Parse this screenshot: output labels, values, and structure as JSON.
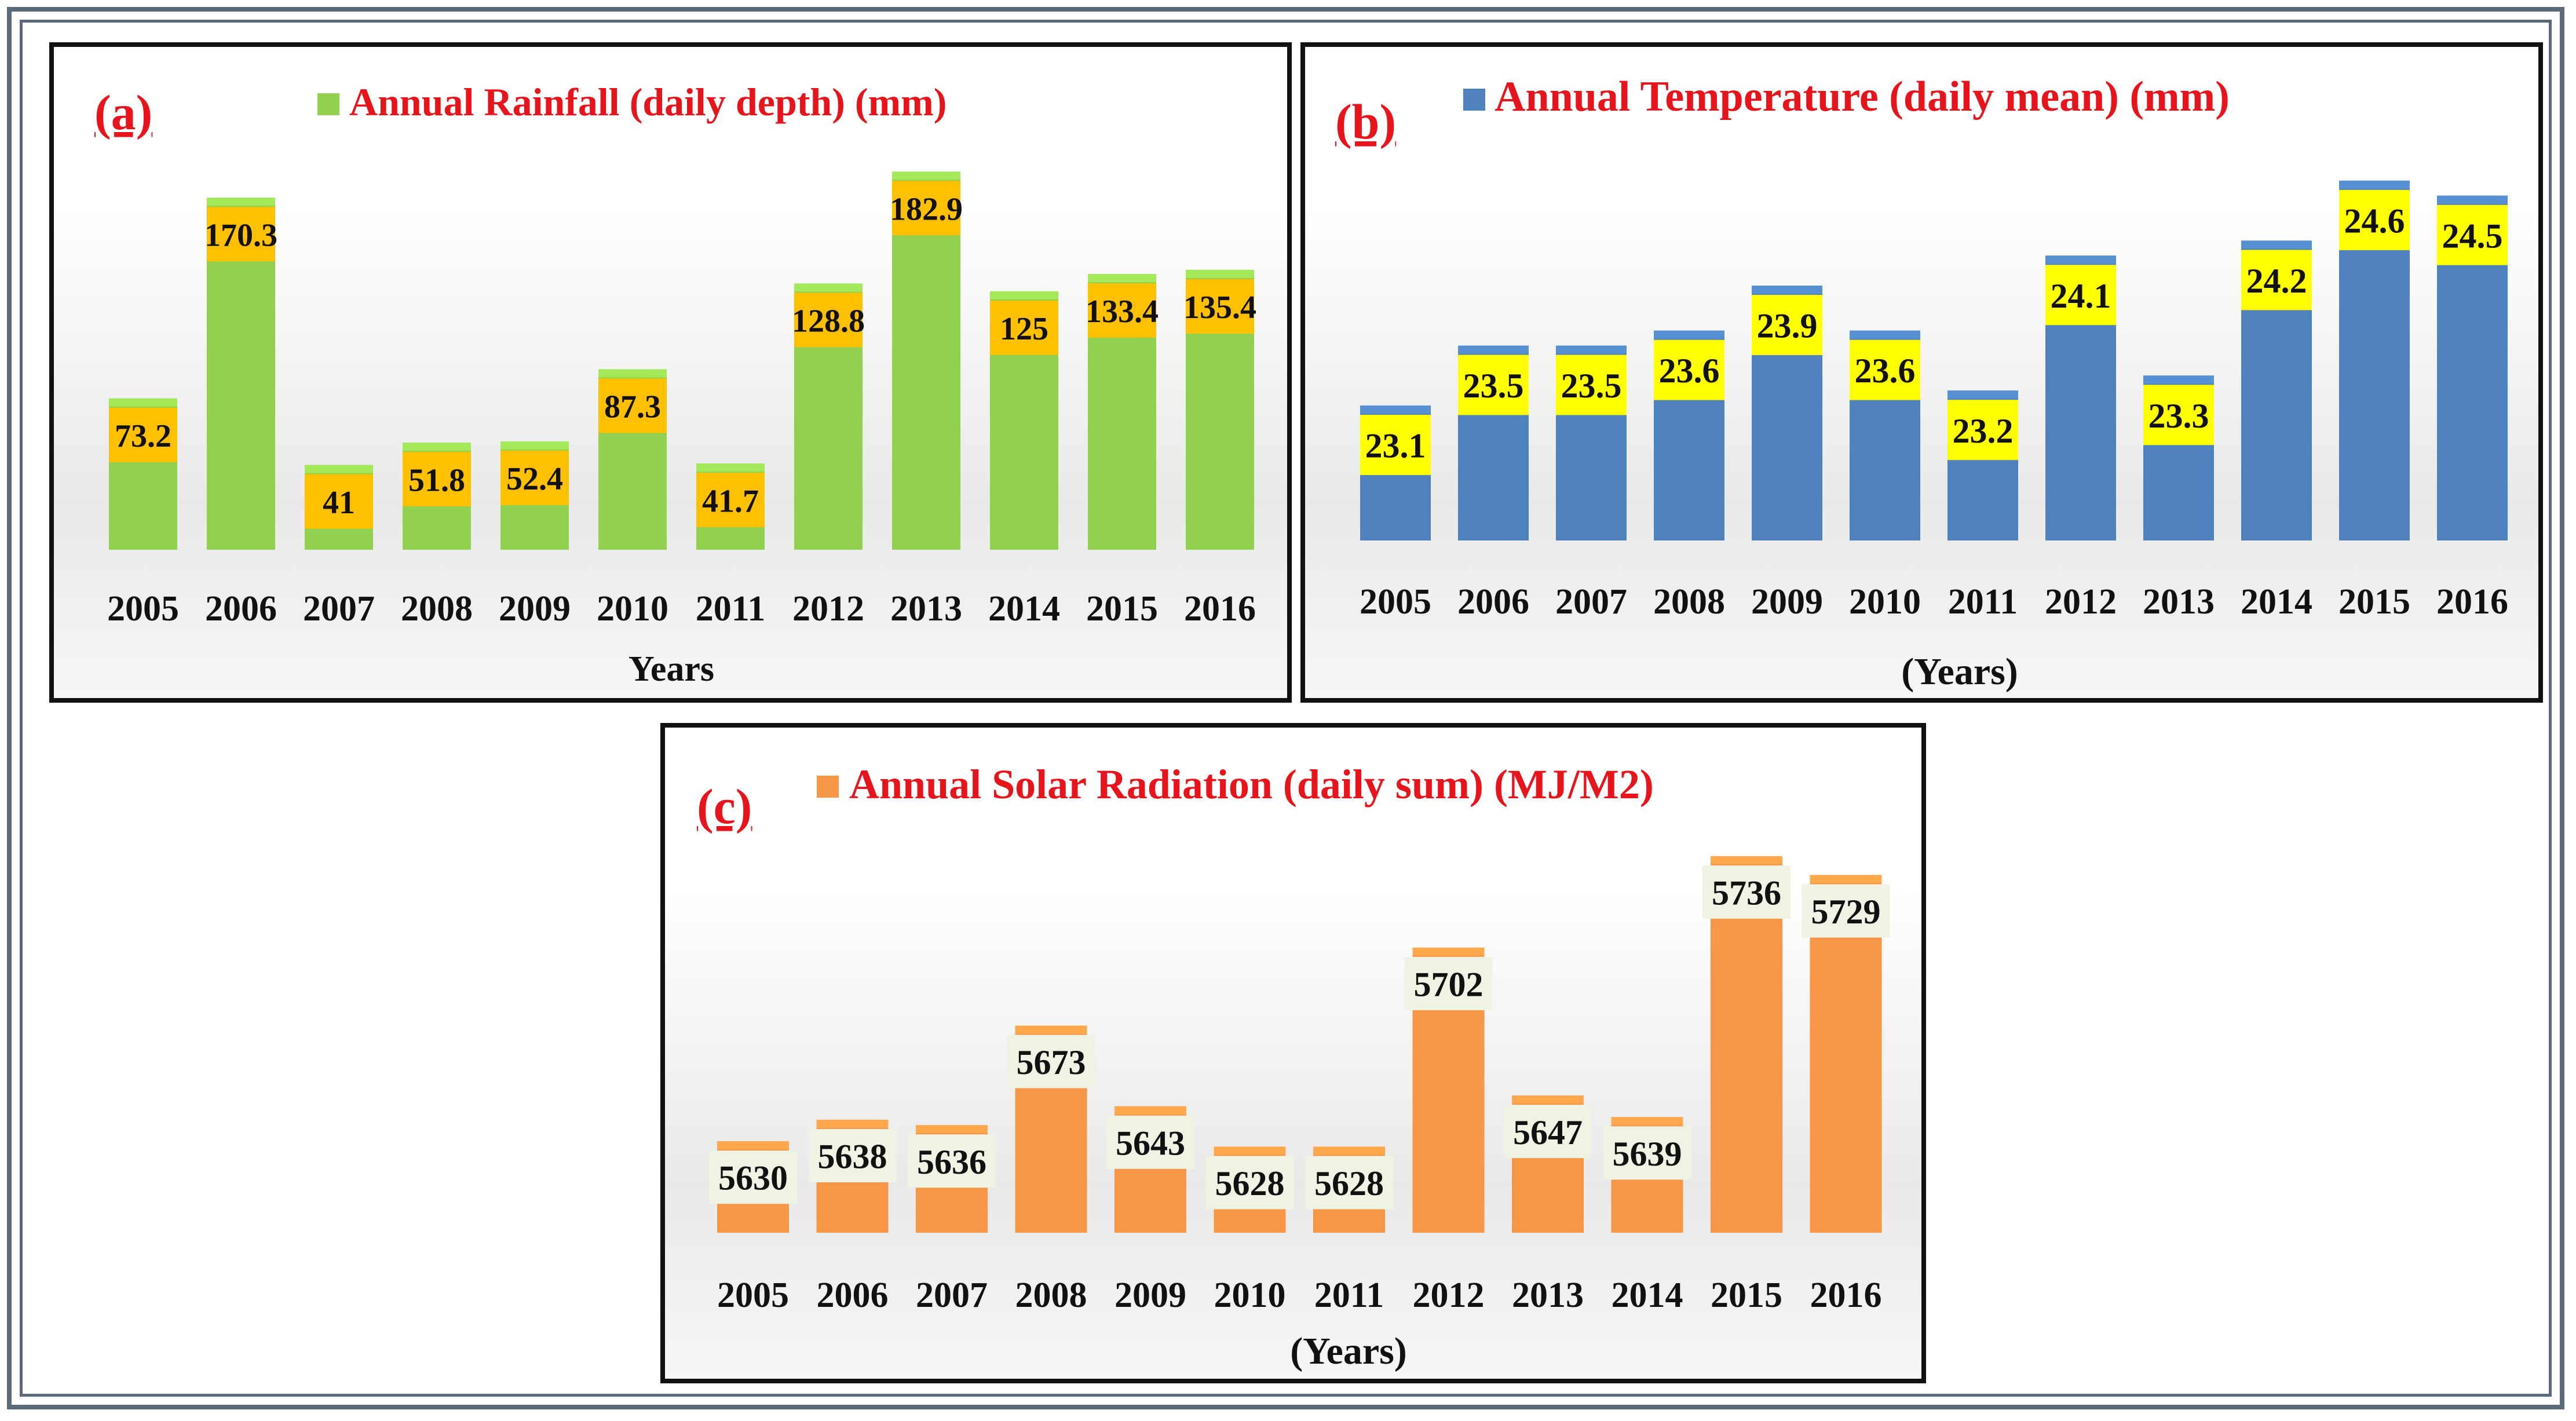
{
  "colors": {
    "title_red": "#e8141b",
    "label_text": "#111111",
    "rainfall_bar": "#92d050",
    "rainfall_label_bg": "#ffc000",
    "temperature_bar": "#4f81bd",
    "temperature_label_bg": "#ffff00",
    "solar_bar": "#f79646",
    "solar_label_bg": "#eef3e4"
  },
  "chart_data": [
    {
      "panel_label": "(a)",
      "type": "bar",
      "title": "Annual Rainfall (daily depth) (mm)",
      "xlabel": "Years",
      "ylabel": "",
      "legend_position": "top-center",
      "grid": false,
      "ylim": [
        0,
        190
      ],
      "categories": [
        "2005",
        "2006",
        "2007",
        "2008",
        "2009",
        "2010",
        "2011",
        "2012",
        "2013",
        "2014",
        "2015",
        "2016"
      ],
      "series": [
        {
          "name": "Annual Rainfall (daily depth) (mm)",
          "values": [
            73.2,
            170.3,
            41,
            51.8,
            52.4,
            87.3,
            41.7,
            128.8,
            182.9,
            125,
            133.4,
            135.4
          ]
        }
      ],
      "data_labels": [
        "73.2",
        "170.3",
        "41",
        "51.8",
        "52.4",
        "87.3",
        "41.7",
        "128.8",
        "182.9",
        "125",
        "133.4",
        "135.4"
      ]
    },
    {
      "panel_label": "(b)",
      "type": "bar",
      "title": "Annual Temperature (daily mean) (mm)",
      "xlabel": "(Years)",
      "ylabel": "",
      "legend_position": "top-center",
      "grid": false,
      "ylim": [
        22.2,
        24.75
      ],
      "categories": [
        "2005",
        "2006",
        "2007",
        "2008",
        "2009",
        "2010",
        "2011",
        "2012",
        "2013",
        "2014",
        "2015",
        "2016"
      ],
      "series": [
        {
          "name": "Annual Temperature (daily mean) (mm)",
          "values": [
            23.1,
            23.5,
            23.5,
            23.6,
            23.9,
            23.6,
            23.2,
            24.1,
            23.3,
            24.2,
            24.6,
            24.5
          ]
        }
      ],
      "data_labels": [
        "23.1",
        "23.5",
        "23.5",
        "23.6",
        "23.9",
        "23.6",
        "23.2",
        "24.1",
        "23.3",
        "24.2",
        "24.6",
        "24.5"
      ]
    },
    {
      "panel_label": "(c)",
      "type": "bar",
      "title": "Annual Solar Radiation (daily sum) (MJ/M2)",
      "xlabel": "(Years)",
      "ylabel": "",
      "legend_position": "top-center",
      "grid": false,
      "ylim": [
        5596,
        5739
      ],
      "categories": [
        "2005",
        "2006",
        "2007",
        "2008",
        "2009",
        "2010",
        "2011",
        "2012",
        "2013",
        "2014",
        "2015",
        "2016"
      ],
      "series": [
        {
          "name": "Annual Solar Radiation (daily sum) (MJ/M2)",
          "values": [
            5630,
            5638,
            5636,
            5673,
            5643,
            5628,
            5628,
            5702,
            5647,
            5639,
            5736,
            5729
          ]
        }
      ],
      "data_labels": [
        "5630",
        "5638",
        "5636",
        "5673",
        "5643",
        "5628",
        "5628",
        "5702",
        "5647",
        "5639",
        "5736",
        "5729"
      ]
    }
  ]
}
